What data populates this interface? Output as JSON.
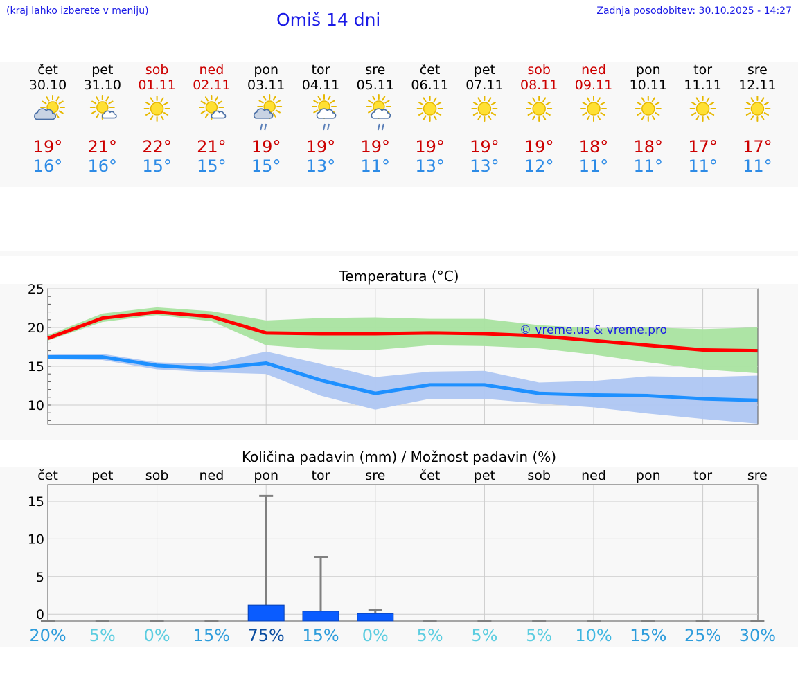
{
  "header": {
    "note": "(kraj lahko izberete v meniju)",
    "title": "Omiš 14 dni",
    "updated": "Zadnja posodobitev: 30.10.2025 - 14:27"
  },
  "days": [
    {
      "name": "čet",
      "date": "30.10",
      "weekend": false,
      "icon": "sun-cloud-icon",
      "tmax": "19°",
      "tmin": "16°"
    },
    {
      "name": "pet",
      "date": "31.10",
      "weekend": false,
      "icon": "sun-cloud-icon",
      "tmax": "21°",
      "tmin": "16°"
    },
    {
      "name": "sob",
      "date": "01.11",
      "weekend": true,
      "icon": "sun-icon",
      "tmax": "22°",
      "tmin": "15°"
    },
    {
      "name": "ned",
      "date": "02.11",
      "weekend": true,
      "icon": "sun-cloud-icon",
      "tmax": "21°",
      "tmin": "15°"
    },
    {
      "name": "pon",
      "date": "03.11",
      "weekend": false,
      "icon": "sun-cloud-rain-icon",
      "tmax": "19°",
      "tmin": "15°"
    },
    {
      "name": "tor",
      "date": "04.11",
      "weekend": false,
      "icon": "sun-cloud-rain-icon",
      "tmax": "19°",
      "tmin": "13°"
    },
    {
      "name": "sre",
      "date": "05.11",
      "weekend": false,
      "icon": "sun-cloud-rain-icon",
      "tmax": "19°",
      "tmin": "11°"
    },
    {
      "name": "čet",
      "date": "06.11",
      "weekend": false,
      "icon": "sun-icon",
      "tmax": "19°",
      "tmin": "13°"
    },
    {
      "name": "pet",
      "date": "07.11",
      "weekend": false,
      "icon": "sun-icon",
      "tmax": "19°",
      "tmin": "13°"
    },
    {
      "name": "sob",
      "date": "08.11",
      "weekend": true,
      "icon": "sun-icon",
      "tmax": "19°",
      "tmin": "12°"
    },
    {
      "name": "ned",
      "date": "09.11",
      "weekend": true,
      "icon": "sun-icon",
      "tmax": "18°",
      "tmin": "11°"
    },
    {
      "name": "pon",
      "date": "10.11",
      "weekend": false,
      "icon": "sun-icon",
      "tmax": "18°",
      "tmin": "11°"
    },
    {
      "name": "tor",
      "date": "11.11",
      "weekend": false,
      "icon": "sun-icon",
      "tmax": "17°",
      "tmin": "11°"
    },
    {
      "name": "sre",
      "date": "12.11",
      "weekend": false,
      "icon": "sun-icon",
      "tmax": "17°",
      "tmin": "11°"
    }
  ],
  "colors": {
    "weekend": "#cc0000",
    "weekday": "#000000",
    "tmax": "#cc0000",
    "tmin": "#2d8be6",
    "max_line": "#ff0000",
    "max_band": "#a9e3a0",
    "min_line": "#1e90ff",
    "min_band": "#aec6f2",
    "precip_bar": "#0a5cff",
    "error_bar": "#808080"
  },
  "credit": "© vreme.us & vreme.pro",
  "chart_data": [
    {
      "type": "line",
      "title": "Temperatura (°C)",
      "x": [
        0,
        1,
        2,
        3,
        4,
        5,
        6,
        7,
        8,
        9,
        10,
        11,
        12,
        13
      ],
      "ylim": [
        7.5,
        25
      ],
      "yticks": [
        10,
        15,
        20,
        25
      ],
      "series": [
        {
          "name": "max",
          "values": [
            18.6,
            21.2,
            22.0,
            21.4,
            19.3,
            19.2,
            19.2,
            19.3,
            19.2,
            18.9,
            18.3,
            17.7,
            17.1,
            17.0
          ],
          "band_low": [
            18.3,
            20.7,
            21.6,
            20.8,
            17.7,
            17.2,
            17.1,
            17.7,
            17.6,
            17.3,
            16.5,
            15.5,
            14.6,
            14.1
          ],
          "band_high": [
            19.0,
            21.8,
            22.6,
            22.1,
            20.9,
            21.2,
            21.3,
            21.1,
            21.1,
            20.3,
            19.9,
            20.0,
            19.8,
            20.0
          ]
        },
        {
          "name": "min",
          "values": [
            16.2,
            16.2,
            15.1,
            14.7,
            15.4,
            13.2,
            11.5,
            12.6,
            12.6,
            11.5,
            11.3,
            11.2,
            10.8,
            10.6
          ],
          "band_low": [
            15.9,
            15.8,
            14.6,
            14.2,
            14.0,
            11.2,
            9.4,
            10.8,
            10.8,
            10.2,
            9.7,
            8.9,
            8.2,
            7.6
          ],
          "band_high": [
            16.5,
            16.6,
            15.5,
            15.3,
            16.9,
            15.3,
            13.6,
            14.3,
            14.4,
            12.9,
            13.1,
            13.7,
            13.6,
            13.8
          ]
        }
      ]
    },
    {
      "type": "bar",
      "title": "Količina padavin (mm) / Možnost padavin (%)",
      "categories": [
        "čet",
        "pet",
        "sob",
        "ned",
        "pon",
        "tor",
        "sre",
        "čet",
        "pet",
        "sob",
        "ned",
        "pon",
        "tor",
        "sre"
      ],
      "ylim": [
        -0.9,
        17.2
      ],
      "yticks": [
        0,
        5,
        10,
        15
      ],
      "values": [
        0,
        0,
        0,
        0,
        1.2,
        0.4,
        0.1,
        0,
        0,
        0,
        0,
        0,
        0,
        0
      ],
      "error_high": [
        0,
        0,
        0,
        0,
        15.7,
        7.6,
        0.6,
        0,
        0,
        0,
        0,
        0,
        0,
        0
      ],
      "probability": [
        "20%",
        "5%",
        "0%",
        "15%",
        "75%",
        "15%",
        "0%",
        "5%",
        "5%",
        "5%",
        "10%",
        "15%",
        "25%",
        "30%"
      ],
      "probability_colors": [
        "#2d9cdb",
        "#5ccde0",
        "#5ccde0",
        "#2d9cdb",
        "#0a4da0",
        "#2d9cdb",
        "#5ccde0",
        "#5ccde0",
        "#5ccde0",
        "#5ccde0",
        "#3fb6e0",
        "#2d9cdb",
        "#2d9cdb",
        "#2d9cdb"
      ]
    }
  ]
}
